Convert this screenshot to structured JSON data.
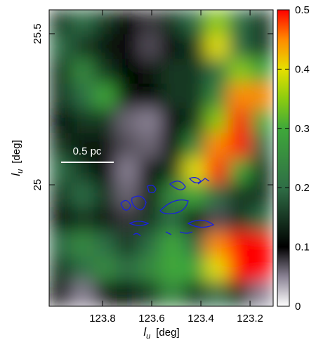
{
  "chart_data": {
    "type": "image",
    "xlabel": {
      "symbol": "l",
      "subscript": "u",
      "unit": "[deg]"
    },
    "ylabel": {
      "symbol": "l",
      "subscript": "u",
      "unit": "[deg]"
    },
    "scale_bar": "0.5 pc",
    "xlim": [
      124.017,
      123.106
    ],
    "xticks": [
      123.8,
      123.6,
      123.4,
      123.2
    ],
    "ylim": [
      24.598,
      25.579
    ],
    "yticks": [
      25,
      25.5
    ],
    "clim": [
      0,
      0.5
    ],
    "cticks": [
      0,
      0.1,
      0.2,
      0.3,
      0.4,
      0.5
    ],
    "colormap": [
      [
        0,
        "#ffffff"
      ],
      [
        0.05,
        "#8a8294"
      ],
      [
        0.1,
        "#000000"
      ],
      [
        0.2,
        "#2f6e46"
      ],
      [
        0.3,
        "#3fa83a"
      ],
      [
        0.35,
        "#8ccc10"
      ],
      [
        0.4,
        "#e6e000"
      ],
      [
        0.45,
        "#ff8a00"
      ],
      [
        0.5,
        "#ff0000"
      ]
    ],
    "z": [
      [
        0.15,
        0.2,
        0.15,
        0.1,
        0.08,
        0.15,
        0.2,
        0.35,
        0.2,
        0.15
      ],
      [
        0.2,
        0.15,
        0.12,
        0.1,
        0.07,
        0.1,
        0.15,
        0.4,
        0.2,
        0.15
      ],
      [
        0.15,
        0.25,
        0.15,
        0.1,
        0.12,
        0.15,
        0.15,
        0.2,
        0.35,
        0.3
      ],
      [
        0.15,
        0.2,
        0.3,
        0.12,
        0.1,
        0.15,
        0.15,
        0.25,
        0.45,
        0.45
      ],
      [
        0.1,
        0.15,
        0.15,
        0.06,
        0.05,
        0.1,
        0.15,
        0.35,
        0.5,
        0.3
      ],
      [
        0.15,
        0.12,
        0.12,
        0.07,
        0.06,
        0.1,
        0.25,
        0.45,
        0.5,
        0.2
      ],
      [
        0.2,
        0.15,
        0.1,
        0.05,
        0.1,
        0.15,
        0.4,
        0.5,
        0.3,
        0.15
      ],
      [
        0.15,
        0.2,
        0.15,
        0.06,
        0.12,
        0.25,
        0.3,
        0.2,
        0.15,
        0.15
      ],
      [
        0.1,
        0.15,
        0.12,
        0.08,
        0.15,
        0.2,
        0.1,
        0.07,
        0.15,
        0.2
      ],
      [
        0.2,
        0.25,
        0.2,
        0.15,
        0.2,
        0.3,
        0.2,
        0.45,
        0.5,
        0.5
      ],
      [
        0.15,
        0.2,
        0.25,
        0.2,
        0.25,
        0.3,
        0.3,
        0.4,
        0.5,
        0.5
      ],
      [
        0.1,
        0.05,
        0.12,
        0.1,
        0.15,
        0.25,
        0.15,
        0.2,
        0.15,
        0.05
      ]
    ]
  }
}
